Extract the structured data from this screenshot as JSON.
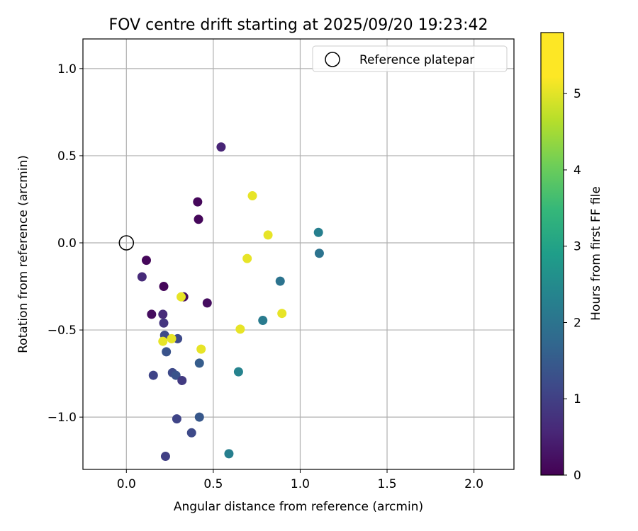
{
  "chart_data": {
    "type": "scatter",
    "title": "FOV centre drift starting at 2025/09/20 19:23:42",
    "xlabel": "Angular distance from reference (arcmin)",
    "ylabel": "Rotation from reference (arcmin)",
    "xlim": [
      -0.25,
      2.23
    ],
    "ylim": [
      -1.3,
      1.17
    ],
    "xticks": [
      0.0,
      0.5,
      1.0,
      1.5,
      2.0
    ],
    "xtick_labels": [
      "0.0",
      "0.5",
      "1.0",
      "1.5",
      "2.0"
    ],
    "yticks": [
      -1.0,
      -0.5,
      0.0,
      0.5,
      1.0
    ],
    "ytick_labels": [
      "−1.0",
      "−0.5",
      "0.0",
      "0.5",
      "1.0"
    ],
    "grid": true,
    "legend": {
      "placement": "top-right",
      "label": "Reference platepar"
    },
    "reference_point": {
      "x": 0.0,
      "y": 0.0,
      "marker": "open-circle"
    },
    "colorbar": {
      "label": "Hours from first FF file",
      "colormap": "viridis",
      "range": [
        0,
        5.8
      ],
      "ticks": [
        0,
        1,
        2,
        3,
        4,
        5
      ],
      "tick_labels": [
        "0",
        "1",
        "2",
        "3",
        "4",
        "5"
      ]
    },
    "points": [
      {
        "x": 0.545,
        "y": 0.55,
        "c": 0.6
      },
      {
        "x": 0.41,
        "y": 0.235,
        "c": 0.1
      },
      {
        "x": 0.415,
        "y": 0.135,
        "c": 0.1
      },
      {
        "x": 0.115,
        "y": -0.1,
        "c": 0.1
      },
      {
        "x": 0.09,
        "y": -0.195,
        "c": 0.7
      },
      {
        "x": 0.215,
        "y": -0.25,
        "c": 0.1
      },
      {
        "x": 0.33,
        "y": -0.31,
        "c": 0.2
      },
      {
        "x": 0.465,
        "y": -0.345,
        "c": 0.2
      },
      {
        "x": 0.145,
        "y": -0.41,
        "c": 0.2
      },
      {
        "x": 0.21,
        "y": -0.41,
        "c": 0.7
      },
      {
        "x": 0.215,
        "y": -0.46,
        "c": 0.9
      },
      {
        "x": 0.22,
        "y": -0.53,
        "c": 1.3
      },
      {
        "x": 0.295,
        "y": -0.55,
        "c": 1.3
      },
      {
        "x": 0.23,
        "y": -0.625,
        "c": 1.5
      },
      {
        "x": 0.42,
        "y": -0.69,
        "c": 1.7
      },
      {
        "x": 0.155,
        "y": -0.76,
        "c": 1.2
      },
      {
        "x": 0.265,
        "y": -0.745,
        "c": 1.3
      },
      {
        "x": 0.285,
        "y": -0.76,
        "c": 1.5
      },
      {
        "x": 0.32,
        "y": -0.79,
        "c": 1.0
      },
      {
        "x": 0.29,
        "y": -1.01,
        "c": 1.2
      },
      {
        "x": 0.42,
        "y": -1.0,
        "c": 1.6
      },
      {
        "x": 0.375,
        "y": -1.09,
        "c": 1.3
      },
      {
        "x": 0.225,
        "y": -1.225,
        "c": 1.1
      },
      {
        "x": 0.59,
        "y": -1.21,
        "c": 2.5
      },
      {
        "x": 0.645,
        "y": -0.74,
        "c": 2.6
      },
      {
        "x": 0.785,
        "y": -0.445,
        "c": 2.4
      },
      {
        "x": 0.885,
        "y": -0.22,
        "c": 2.2
      },
      {
        "x": 1.105,
        "y": 0.06,
        "c": 2.5
      },
      {
        "x": 1.11,
        "y": -0.06,
        "c": 2.2
      },
      {
        "x": 0.725,
        "y": 0.27,
        "c": 5.6
      },
      {
        "x": 0.815,
        "y": 0.045,
        "c": 5.6
      },
      {
        "x": 0.695,
        "y": -0.09,
        "c": 5.6
      },
      {
        "x": 0.315,
        "y": -0.31,
        "c": 5.6
      },
      {
        "x": 0.895,
        "y": -0.405,
        "c": 5.6
      },
      {
        "x": 0.655,
        "y": -0.495,
        "c": 5.6
      },
      {
        "x": 0.43,
        "y": -0.61,
        "c": 5.6
      },
      {
        "x": 0.21,
        "y": -0.565,
        "c": 5.6
      },
      {
        "x": 0.26,
        "y": -0.55,
        "c": 5.6
      }
    ]
  }
}
